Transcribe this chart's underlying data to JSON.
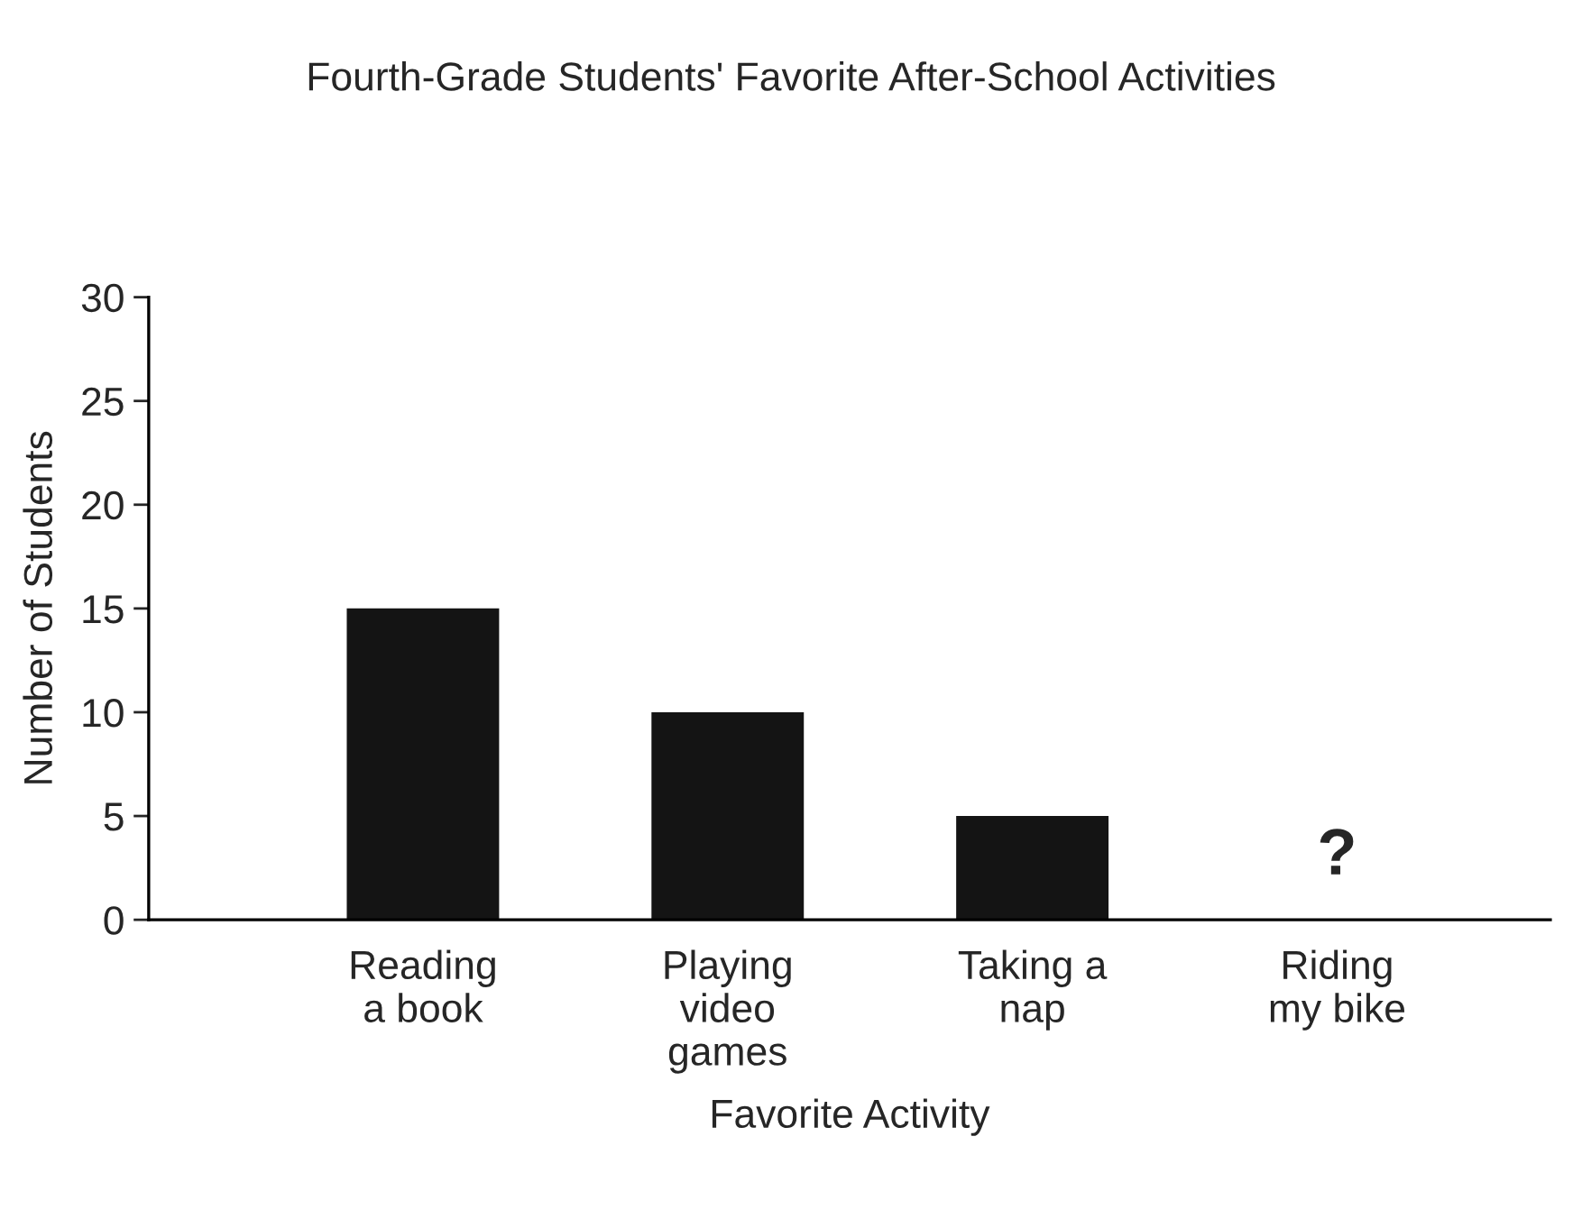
{
  "chart_data": {
    "type": "bar",
    "title": "Fourth-Grade Students' Favorite After-School Activities",
    "xlabel": "Favorite Activity",
    "ylabel": "Number of Students",
    "categories": [
      "Reading\na book",
      "Playing\nvideo\ngames",
      "Taking a\nnap",
      "Riding\nmy bike"
    ],
    "values": [
      15,
      10,
      5,
      null
    ],
    "color": "#141414",
    "ylim": [
      0,
      30
    ],
    "yticks": [
      0,
      5,
      10,
      15,
      20,
      25,
      30
    ],
    "grid": false,
    "annotations": [
      "?"
    ]
  }
}
